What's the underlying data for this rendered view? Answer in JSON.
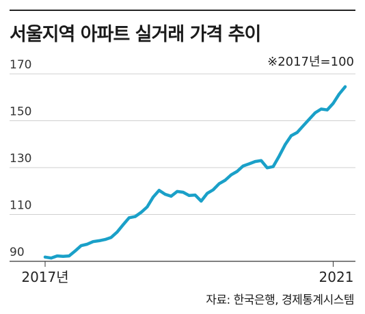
{
  "title": "서울지역 아파트 실거래 가격 추이",
  "source": "자료: 한국은행, 경제통계시스템",
  "chart_data": {
    "type": "line",
    "title": "서울지역 아파트 실거래 가격 추이",
    "subtitle": "※2017년=100",
    "xlabel": "",
    "ylabel": "",
    "ylim": [
      90,
      170
    ],
    "yticks": [
      90,
      110,
      130,
      150,
      170
    ],
    "xticks": [
      {
        "label": "2017년",
        "x": 0
      },
      {
        "label": "2021",
        "x": 48
      }
    ],
    "x_unit": "months since January 2017",
    "grid": true,
    "legend": "none",
    "line_color": "#1aa0c8",
    "series": [
      {
        "values": [
          91.8,
          91.4,
          92.3,
          92.1,
          92.3,
          94.4,
          96.7,
          97.3,
          98.4,
          98.8,
          99.3,
          100.2,
          102.5,
          105.6,
          108.6,
          109.1,
          110.9,
          113.2,
          117.4,
          120.3,
          118.6,
          117.8,
          119.8,
          119.5,
          118.1,
          118.3,
          115.7,
          119.0,
          120.5,
          123.1,
          124.6,
          126.9,
          128.4,
          130.7,
          131.6,
          132.6,
          133.0,
          129.9,
          130.4,
          134.9,
          139.8,
          143.6,
          145.0,
          147.8,
          150.6,
          153.4,
          155.0,
          154.6,
          157.4,
          161.4,
          164.5
        ]
      }
    ]
  }
}
